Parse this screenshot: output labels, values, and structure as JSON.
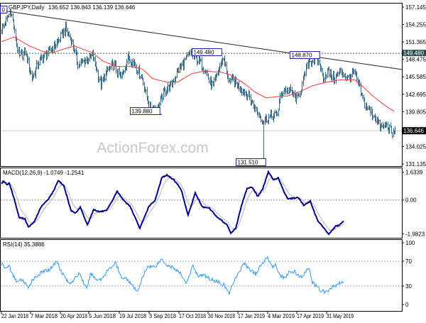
{
  "chart_data": [
    {
      "type": "ohlc",
      "title": "GBPJPY,Daily",
      "ohlc_readout": "136.652 136.843 136.139 136.646",
      "x_unit": "bar index",
      "x_ticks": [
        {
          "bar": 2,
          "label": "22 Jan 2018"
        },
        {
          "bar": 43,
          "label": "7 Mar 2018"
        },
        {
          "bar": 85,
          "label": "20 Apr 2018"
        },
        {
          "bar": 125,
          "label": "5 Jun 2018"
        },
        {
          "bar": 168,
          "label": "19 Jul 2018"
        },
        {
          "bar": 210,
          "label": "3 Sep 2018"
        },
        {
          "bar": 252,
          "label": "17 Oct 2018"
        },
        {
          "bar": 293,
          "label": "30 Nov 2018"
        },
        {
          "bar": 335,
          "label": "17 Jan 2019"
        },
        {
          "bar": 377,
          "label": "4 Mar 2019"
        },
        {
          "bar": 418,
          "label": "17 Apr 2019"
        },
        {
          "bar": 460,
          "label": "31 May 2019"
        }
      ],
      "y_ticks": [
        "157.145",
        "154.255",
        "151.365",
        "148.475",
        "145.585",
        "142.695",
        "139.805",
        "134.025",
        "131.135"
      ],
      "ylim": [
        131.135,
        157.145
      ],
      "current_price": {
        "value": 136.646,
        "label": "136.646"
      },
      "resistance_line": {
        "value": 149.48,
        "label": "149.480"
      },
      "annotations": [
        {
          "bar": 2,
          "value": 156.61,
          "label": "0"
        },
        {
          "bar": 268,
          "value": 149.48,
          "label": "149.480"
        },
        {
          "bar": 445,
          "value": 148.87,
          "label": "148.870"
        },
        {
          "bar": 222,
          "value": 139.88,
          "label": "139.880"
        },
        {
          "bar": 372,
          "value": 131.51,
          "label": "131.510"
        }
      ],
      "trendline": [
        [
          2,
          156.6
        ],
        [
          566,
          146.8
        ]
      ],
      "spike_low": {
        "bar": 372,
        "value": 131.51
      },
      "close": [
        [
          0,
          153.0
        ],
        [
          8,
          154.8
        ],
        [
          15,
          156.6
        ],
        [
          22,
          151.8
        ],
        [
          27,
          148.8
        ],
        [
          35,
          149.8
        ],
        [
          45,
          145.3
        ],
        [
          55,
          148.2
        ],
        [
          65,
          149.4
        ],
        [
          80,
          151.2
        ],
        [
          92,
          153.5
        ],
        [
          100,
          151.8
        ],
        [
          110,
          147.6
        ],
        [
          118,
          148.2
        ],
        [
          130,
          149.1
        ],
        [
          135,
          147.1
        ],
        [
          142,
          144.1
        ],
        [
          150,
          146.5
        ],
        [
          160,
          147.6
        ],
        [
          170,
          145.3
        ],
        [
          180,
          148.8
        ],
        [
          190,
          147.6
        ],
        [
          200,
          145.3
        ],
        [
          210,
          140.6
        ],
        [
          222,
          140.3
        ],
        [
          230,
          143.0
        ],
        [
          240,
          144.1
        ],
        [
          250,
          146.5
        ],
        [
          260,
          148.2
        ],
        [
          268,
          149.4
        ],
        [
          280,
          148.2
        ],
        [
          290,
          146.5
        ],
        [
          295,
          144.7
        ],
        [
          300,
          144.1
        ],
        [
          310,
          147.6
        ],
        [
          315,
          148.8
        ],
        [
          320,
          145.3
        ],
        [
          330,
          144.7
        ],
        [
          340,
          143.6
        ],
        [
          350,
          142.4
        ],
        [
          360,
          140.0
        ],
        [
          370,
          138.3
        ],
        [
          380,
          138.9
        ],
        [
          390,
          139.4
        ],
        [
          395,
          142.4
        ],
        [
          400,
          143.6
        ],
        [
          410,
          143.0
        ],
        [
          418,
          141.8
        ],
        [
          425,
          144.1
        ],
        [
          430,
          146.5
        ],
        [
          435,
          148.2
        ],
        [
          445,
          148.3
        ],
        [
          450,
          147.6
        ],
        [
          455,
          145.3
        ],
        [
          460,
          146.5
        ],
        [
          470,
          145.3
        ],
        [
          480,
          146.5
        ],
        [
          490,
          145.3
        ],
        [
          498,
          146.5
        ],
        [
          505,
          144.1
        ],
        [
          512,
          141.2
        ],
        [
          520,
          140.0
        ],
        [
          528,
          138.9
        ],
        [
          536,
          137.1
        ],
        [
          542,
          137.6
        ],
        [
          548,
          137.1
        ],
        [
          552,
          135.9
        ],
        [
          556,
          136.6
        ]
      ],
      "moving_average": [
        [
          2,
          151.4
        ],
        [
          20,
          152.2
        ],
        [
          40,
          150.8
        ],
        [
          60,
          149.8
        ],
        [
          75,
          149.6
        ],
        [
          90,
          150.2
        ],
        [
          105,
          150.7
        ],
        [
          130,
          149.6
        ],
        [
          145,
          148.2
        ],
        [
          165,
          147.3
        ],
        [
          185,
          147.3
        ],
        [
          200,
          146.9
        ],
        [
          215,
          145.3
        ],
        [
          235,
          144.7
        ],
        [
          250,
          144.7
        ],
        [
          270,
          146.1
        ],
        [
          290,
          146.6
        ],
        [
          300,
          146.4
        ],
        [
          310,
          146.4
        ],
        [
          325,
          145.9
        ],
        [
          345,
          144.4
        ],
        [
          360,
          143.0
        ],
        [
          375,
          142.1
        ],
        [
          390,
          142.3
        ],
        [
          405,
          142.4
        ],
        [
          420,
          143.0
        ],
        [
          440,
          144.1
        ],
        [
          460,
          144.7
        ],
        [
          480,
          145.1
        ],
        [
          500,
          145.1
        ],
        [
          510,
          144.1
        ],
        [
          525,
          142.4
        ],
        [
          545,
          140.6
        ],
        [
          555,
          139.9
        ]
      ],
      "watermark": "ActionForex.com"
    },
    {
      "type": "line",
      "title": "MACD(12,26,9) -1.0749 -1.2541",
      "y_ticks": [
        "1.6339",
        "0.00",
        "-1.9823"
      ],
      "ylim": [
        -1.9823,
        1.6339
      ],
      "macd": [
        [
          2,
          0.97
        ],
        [
          5,
          1.1
        ],
        [
          10,
          0.9
        ],
        [
          13,
          1.0
        ],
        [
          20,
          0.07
        ],
        [
          27,
          -1.04
        ],
        [
          35,
          -1.1
        ],
        [
          40,
          -1.6
        ],
        [
          48,
          -1.3
        ],
        [
          58,
          -0.4
        ],
        [
          67,
          0.0
        ],
        [
          75,
          0.49
        ],
        [
          82,
          1.15
        ],
        [
          90,
          0.83
        ],
        [
          100,
          -0.63
        ],
        [
          107,
          -0.76
        ],
        [
          113,
          -0.42
        ],
        [
          123,
          -1.46
        ],
        [
          132,
          -0.56
        ],
        [
          140,
          -0.69
        ],
        [
          150,
          -0.63
        ],
        [
          157,
          -0.14
        ],
        [
          165,
          0.51
        ],
        [
          175,
          -0.07
        ],
        [
          183,
          -0.35
        ],
        [
          197,
          -1.67
        ],
        [
          210,
          -0.35
        ],
        [
          218,
          -0.07
        ],
        [
          228,
          1.32
        ],
        [
          235,
          1.46
        ],
        [
          245,
          1.18
        ],
        [
          255,
          0.63
        ],
        [
          265,
          -0.9
        ],
        [
          275,
          0.42
        ],
        [
          285,
          -0.42
        ],
        [
          295,
          -0.49
        ],
        [
          305,
          -0.97
        ],
        [
          320,
          -1.46
        ],
        [
          325,
          -1.94
        ],
        [
          332,
          -1.67
        ],
        [
          340,
          -0.35
        ],
        [
          348,
          0.69
        ],
        [
          355,
          0.76
        ],
        [
          363,
          0.21
        ],
        [
          370,
          0.63
        ],
        [
          378,
          1.67
        ],
        [
          385,
          1.18
        ],
        [
          392,
          1.29
        ],
        [
          400,
          0.49
        ],
        [
          405,
          0.07
        ],
        [
          412,
          0.1
        ],
        [
          420,
          0.14
        ],
        [
          428,
          -0.32
        ],
        [
          437,
          -0.07
        ],
        [
          447,
          -1.18
        ],
        [
          455,
          -1.6
        ],
        [
          463,
          -2.01
        ],
        [
          473,
          -1.53
        ],
        [
          478,
          -1.49
        ],
        [
          484,
          -1.21
        ]
      ]
    },
    {
      "type": "line",
      "title": "RSI(14) 35.3886",
      "y_ticks": [
        "100",
        "70",
        "30",
        "0"
      ],
      "ylim": [
        0,
        100
      ],
      "levels": [
        70,
        30
      ],
      "rsi": [
        [
          2,
          66
        ],
        [
          8,
          58
        ],
        [
          13,
          64
        ],
        [
          17,
          49
        ],
        [
          25,
          36
        ],
        [
          30,
          40
        ],
        [
          37,
          34
        ],
        [
          40,
          24
        ],
        [
          45,
          40
        ],
        [
          53,
          47
        ],
        [
          60,
          53
        ],
        [
          70,
          57
        ],
        [
          80,
          70
        ],
        [
          87,
          53
        ],
        [
          97,
          34
        ],
        [
          105,
          41
        ],
        [
          112,
          51
        ],
        [
          122,
          24
        ],
        [
          128,
          51
        ],
        [
          135,
          41
        ],
        [
          143,
          41
        ],
        [
          150,
          53
        ],
        [
          163,
          68
        ],
        [
          170,
          45
        ],
        [
          180,
          41
        ],
        [
          193,
          20
        ],
        [
          200,
          41
        ],
        [
          208,
          62
        ],
        [
          218,
          61
        ],
        [
          228,
          74
        ],
        [
          235,
          64
        ],
        [
          245,
          59
        ],
        [
          255,
          49
        ],
        [
          263,
          34
        ],
        [
          272,
          64
        ],
        [
          278,
          47
        ],
        [
          288,
          47
        ],
        [
          297,
          41
        ],
        [
          305,
          38
        ],
        [
          315,
          32
        ],
        [
          323,
          18
        ],
        [
          330,
          40
        ],
        [
          337,
          51
        ],
        [
          343,
          68
        ],
        [
          350,
          59
        ],
        [
          360,
          49
        ],
        [
          368,
          64
        ],
        [
          377,
          78
        ],
        [
          383,
          61
        ],
        [
          388,
          64
        ],
        [
          395,
          47
        ],
        [
          402,
          43
        ],
        [
          408,
          53
        ],
        [
          415,
          53
        ],
        [
          423,
          43
        ],
        [
          435,
          59
        ],
        [
          440,
          36
        ],
        [
          450,
          24
        ],
        [
          460,
          20
        ],
        [
          468,
          28
        ],
        [
          475,
          32
        ],
        [
          482,
          38
        ],
        [
          484,
          35
        ]
      ]
    }
  ],
  "colors": {
    "bars": "#3f6f8f",
    "ma": "#ff3b3b",
    "macd": "#000090",
    "signal": "#b4b4b4",
    "rsi": "#3399ff",
    "label_border": "#2020a0"
  }
}
